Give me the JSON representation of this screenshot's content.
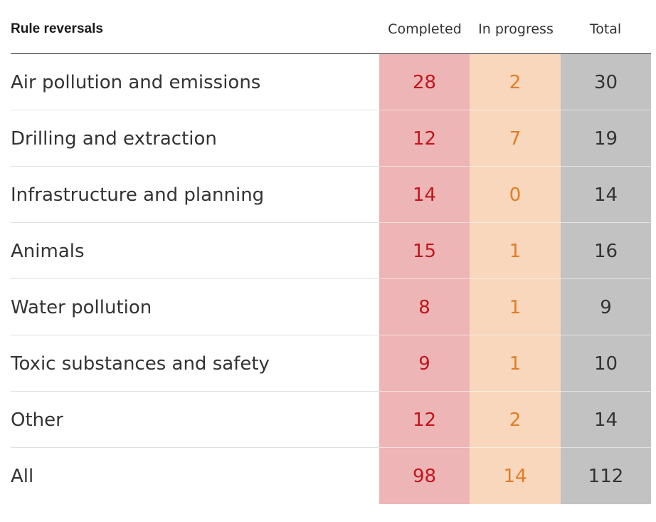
{
  "chart_data": {
    "type": "table",
    "title": "Rule reversals",
    "columns": [
      "Completed",
      "In progress",
      "Total"
    ],
    "rows": [
      {
        "label": "Air pollution and emissions",
        "completed": "28",
        "in_progress": "2",
        "total": "30"
      },
      {
        "label": "Drilling and extraction",
        "completed": "12",
        "in_progress": "7",
        "total": "19"
      },
      {
        "label": "Infrastructure and planning",
        "completed": "14",
        "in_progress": "0",
        "total": "14"
      },
      {
        "label": "Animals",
        "completed": "15",
        "in_progress": "1",
        "total": "16"
      },
      {
        "label": "Water pollution",
        "completed": "8",
        "in_progress": "1",
        "total": "9"
      },
      {
        "label": "Toxic substances and safety",
        "completed": "9",
        "in_progress": "1",
        "total": "10"
      },
      {
        "label": "Other",
        "completed": "12",
        "in_progress": "2",
        "total": "14"
      },
      {
        "label": "All",
        "completed": "98",
        "in_progress": "14",
        "total": "112"
      }
    ],
    "colors": {
      "completed_bg": "#edb5b5",
      "completed_text": "#c0161b",
      "in_progress_bg": "#f8d7bc",
      "in_progress_text": "#e07d29",
      "total_bg": "#c2c2c2",
      "total_text": "#333333"
    }
  }
}
